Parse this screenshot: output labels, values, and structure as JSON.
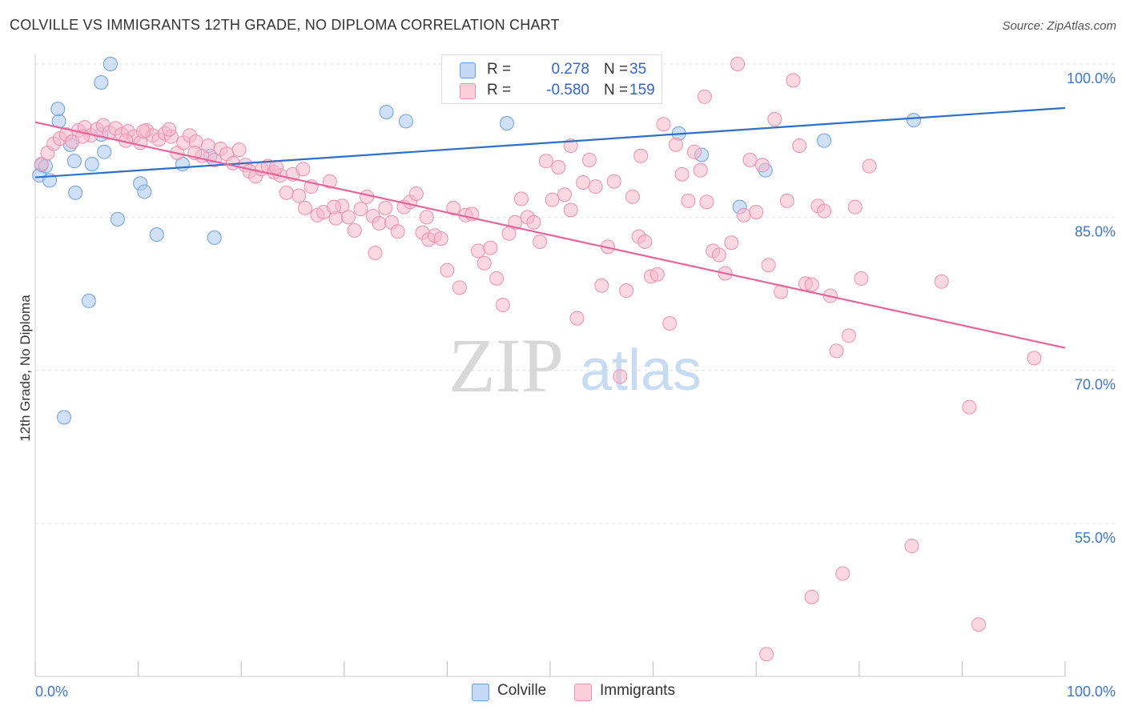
{
  "title": "COLVILLE VS IMMIGRANTS 12TH GRADE, NO DIPLOMA CORRELATION CHART",
  "source": "Source: ZipAtlas.com",
  "watermark": {
    "zip": "ZIP",
    "atlas": "atlas"
  },
  "legend": {
    "r_label": "R =",
    "n_label": "N =",
    "series": [
      {
        "r": "0.278",
        "n": "35",
        "color": "#a9c8f0"
      },
      {
        "r": "-0.580",
        "n": "159",
        "color": "#f6b8cb"
      }
    ]
  },
  "chart_data": {
    "type": "scatter",
    "title": "COLVILLE VS IMMIGRANTS 12TH GRADE, NO DIPLOMA CORRELATION CHART",
    "xlabel": "",
    "ylabel": "12th Grade, No Diploma",
    "xlim": [
      0,
      100
    ],
    "ylim": [
      40,
      101.5
    ],
    "x_tick_labels": [
      "0.0%",
      "100.0%"
    ],
    "y_ticks": [
      100,
      85,
      70,
      55
    ],
    "y_tick_labels": [
      "100.0%",
      "85.0%",
      "70.0%",
      "55.0%"
    ],
    "grid": true,
    "legend_position": "top-center",
    "series": [
      {
        "name": "Colville",
        "color": "#a9c8f0",
        "edge_color": "#6f9fd8",
        "line_color": "#2f6fcc",
        "trend": {
          "x": [
            0,
            100
          ],
          "y": [
            88.9,
            95.7
          ]
        },
        "points": [
          [
            0.6,
            90.1
          ],
          [
            0.4,
            89.1
          ],
          [
            1.4,
            88.6
          ],
          [
            2.3,
            94.4
          ],
          [
            2.2,
            95.6
          ],
          [
            3.4,
            92.1
          ],
          [
            3.8,
            90.5
          ],
          [
            3.9,
            87.4
          ],
          [
            5.5,
            90.2
          ],
          [
            5.2,
            76.8
          ],
          [
            6.4,
            93.1
          ],
          [
            6.7,
            91.4
          ],
          [
            7.3,
            100.0
          ],
          [
            6.4,
            98.2
          ],
          [
            8.0,
            84.8
          ],
          [
            10.2,
            88.3
          ],
          [
            10.6,
            87.5
          ],
          [
            11.8,
            83.3
          ],
          [
            14.3,
            90.2
          ],
          [
            17.4,
            83.0
          ],
          [
            17.0,
            91.0
          ],
          [
            2.8,
            65.4
          ],
          [
            34.1,
            95.3
          ],
          [
            36.0,
            94.4
          ],
          [
            42.0,
            100.0
          ],
          [
            45.8,
            94.2
          ],
          [
            48.0,
            100.0
          ],
          [
            53.0,
            100.0
          ],
          [
            62.5,
            93.2
          ],
          [
            64.7,
            91.1
          ],
          [
            68.4,
            86.0
          ],
          [
            70.9,
            89.6
          ],
          [
            76.6,
            92.5
          ],
          [
            85.3,
            94.5
          ],
          [
            1.0,
            90.0
          ]
        ]
      },
      {
        "name": "Immigrants",
        "color": "#f6b8cb",
        "edge_color": "#ee8fae",
        "line_color": "#e5659a",
        "trend": {
          "x": [
            0,
            100
          ],
          "y": [
            94.3,
            72.2
          ]
        },
        "points": [
          [
            0.6,
            90.2
          ],
          [
            1.2,
            91.3
          ],
          [
            1.8,
            92.2
          ],
          [
            2.4,
            92.7
          ],
          [
            3.0,
            93.1
          ],
          [
            3.6,
            92.4
          ],
          [
            4.2,
            93.5
          ],
          [
            4.8,
            93.8
          ],
          [
            5.4,
            93.0
          ],
          [
            6.0,
            93.6
          ],
          [
            6.6,
            94.0
          ],
          [
            7.2,
            93.3
          ],
          [
            7.8,
            93.7
          ],
          [
            8.4,
            93.1
          ],
          [
            9.0,
            93.4
          ],
          [
            9.6,
            92.9
          ],
          [
            10.2,
            92.3
          ],
          [
            10.8,
            93.5
          ],
          [
            11.4,
            93.0
          ],
          [
            12.0,
            92.6
          ],
          [
            12.6,
            93.2
          ],
          [
            13.2,
            92.9
          ],
          [
            13.8,
            91.3
          ],
          [
            14.4,
            92.3
          ],
          [
            15.0,
            93.0
          ],
          [
            15.6,
            92.4
          ],
          [
            16.2,
            91.0
          ],
          [
            16.8,
            92.0
          ],
          [
            17.4,
            90.6
          ],
          [
            18.0,
            91.7
          ],
          [
            18.6,
            91.2
          ],
          [
            19.2,
            90.3
          ],
          [
            19.8,
            91.6
          ],
          [
            20.4,
            90.1
          ],
          [
            20.8,
            89.5
          ],
          [
            21.4,
            89.0
          ],
          [
            22.0,
            89.7
          ],
          [
            22.6,
            90.0
          ],
          [
            23.2,
            89.4
          ],
          [
            23.8,
            89.1
          ],
          [
            24.4,
            87.4
          ],
          [
            25.0,
            89.2
          ],
          [
            25.6,
            87.1
          ],
          [
            26.2,
            85.9
          ],
          [
            26.8,
            88.0
          ],
          [
            27.4,
            85.2
          ],
          [
            28.0,
            85.5
          ],
          [
            28.6,
            88.5
          ],
          [
            29.2,
            84.9
          ],
          [
            29.8,
            86.1
          ],
          [
            30.4,
            85.0
          ],
          [
            31.0,
            83.7
          ],
          [
            31.6,
            85.8
          ],
          [
            32.2,
            87.0
          ],
          [
            32.8,
            85.1
          ],
          [
            33.4,
            84.4
          ],
          [
            34.0,
            85.9
          ],
          [
            34.6,
            84.5
          ],
          [
            35.2,
            83.6
          ],
          [
            35.8,
            86.0
          ],
          [
            36.4,
            86.5
          ],
          [
            37.0,
            87.3
          ],
          [
            37.6,
            83.5
          ],
          [
            38.2,
            82.8
          ],
          [
            38.8,
            83.2
          ],
          [
            39.4,
            82.9
          ],
          [
            40.0,
            79.8
          ],
          [
            40.6,
            85.9
          ],
          [
            41.2,
            78.1
          ],
          [
            41.8,
            85.2
          ],
          [
            42.4,
            85.3
          ],
          [
            43.0,
            81.7
          ],
          [
            43.6,
            80.5
          ],
          [
            44.2,
            82.0
          ],
          [
            44.8,
            79.0
          ],
          [
            45.4,
            76.4
          ],
          [
            46.0,
            83.4
          ],
          [
            46.6,
            84.5
          ],
          [
            47.2,
            86.8
          ],
          [
            47.8,
            85.0
          ],
          [
            48.4,
            84.5
          ],
          [
            49.0,
            82.6
          ],
          [
            49.6,
            90.5
          ],
          [
            50.2,
            86.7
          ],
          [
            50.8,
            89.9
          ],
          [
            51.4,
            87.2
          ],
          [
            52.0,
            85.7
          ],
          [
            52.6,
            75.1
          ],
          [
            53.2,
            88.4
          ],
          [
            53.8,
            90.6
          ],
          [
            54.4,
            88.0
          ],
          [
            55.0,
            78.3
          ],
          [
            55.6,
            82.1
          ],
          [
            56.2,
            88.5
          ],
          [
            56.8,
            69.4
          ],
          [
            57.4,
            77.8
          ],
          [
            58.0,
            87.0
          ],
          [
            58.6,
            83.1
          ],
          [
            59.2,
            82.6
          ],
          [
            59.8,
            79.2
          ],
          [
            60.4,
            79.4
          ],
          [
            61.0,
            94.1
          ],
          [
            61.6,
            74.6
          ],
          [
            62.2,
            92.1
          ],
          [
            62.8,
            89.2
          ],
          [
            63.4,
            86.6
          ],
          [
            64.0,
            91.4
          ],
          [
            64.6,
            89.6
          ],
          [
            65.2,
            86.5
          ],
          [
            65.8,
            81.7
          ],
          [
            66.4,
            81.3
          ],
          [
            67.0,
            79.5
          ],
          [
            67.6,
            82.5
          ],
          [
            68.2,
            100.0
          ],
          [
            68.8,
            85.2
          ],
          [
            69.4,
            90.6
          ],
          [
            70.0,
            85.5
          ],
          [
            70.6,
            90.1
          ],
          [
            71.2,
            80.3
          ],
          [
            71.8,
            94.6
          ],
          [
            72.4,
            77.7
          ],
          [
            73.0,
            86.6
          ],
          [
            73.6,
            98.4
          ],
          [
            74.2,
            92.0
          ],
          [
            74.8,
            78.5
          ],
          [
            75.4,
            78.4
          ],
          [
            76.0,
            86.1
          ],
          [
            76.6,
            85.6
          ],
          [
            77.2,
            77.3
          ],
          [
            77.8,
            71.9
          ],
          [
            78.4,
            50.1
          ],
          [
            79.0,
            73.4
          ],
          [
            79.6,
            86.0
          ],
          [
            80.2,
            79.0
          ],
          [
            85.1,
            52.8
          ],
          [
            88.0,
            78.7
          ],
          [
            90.7,
            66.4
          ],
          [
            91.6,
            45.1
          ],
          [
            97.0,
            71.2
          ],
          [
            71.0,
            42.2
          ],
          [
            75.4,
            47.8
          ],
          [
            23.4,
            89.9
          ],
          [
            10.5,
            93.4
          ],
          [
            29.0,
            86.0
          ],
          [
            15.5,
            91.3
          ],
          [
            8.8,
            92.5
          ],
          [
            4.6,
            92.9
          ],
          [
            38.0,
            85.0
          ],
          [
            33.0,
            81.5
          ],
          [
            52.0,
            92.0
          ],
          [
            58.8,
            91.0
          ],
          [
            26.0,
            89.7
          ],
          [
            13.0,
            93.6
          ],
          [
            65.0,
            96.8
          ],
          [
            81.0,
            90.0
          ]
        ]
      }
    ]
  },
  "bottom_legend": [
    {
      "label": "Colville",
      "color": "#a9c8f0"
    },
    {
      "label": "Immigrants",
      "color": "#f6b8cb"
    }
  ]
}
